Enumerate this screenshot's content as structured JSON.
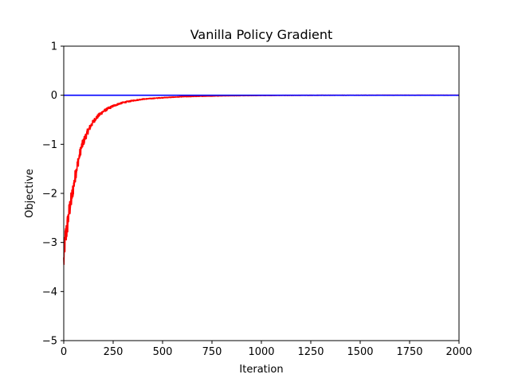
{
  "chart_data": {
    "type": "line",
    "title": "Vanilla Policy Gradient",
    "xlabel": "Iteration",
    "ylabel": "Objective",
    "xlim": [
      0,
      2000
    ],
    "ylim": [
      -5,
      1
    ],
    "xticks": [
      0,
      250,
      500,
      750,
      1000,
      1250,
      1500,
      1750,
      2000
    ],
    "yticks": [
      1,
      0,
      -1,
      -2,
      -3,
      -4,
      -5
    ],
    "grid": false,
    "legend": "none",
    "series": [
      {
        "color": "#ff0000",
        "style": "noisy",
        "x": [
          0,
          5,
          10,
          15,
          20,
          25,
          30,
          40,
          50,
          60,
          70,
          80,
          90,
          100,
          120,
          140,
          160,
          180,
          200,
          225,
          250,
          275,
          300,
          350,
          400,
          450,
          500,
          600,
          700,
          800,
          900,
          1000,
          1100,
          1200,
          1300,
          1400,
          1600,
          1800,
          2000
        ],
        "y": [
          -3.4,
          -3.05,
          -2.85,
          -2.75,
          -2.6,
          -2.45,
          -2.3,
          -2.1,
          -1.85,
          -1.6,
          -1.4,
          -1.22,
          -1.05,
          -0.95,
          -0.75,
          -0.6,
          -0.48,
          -0.4,
          -0.33,
          -0.27,
          -0.22,
          -0.18,
          -0.15,
          -0.11,
          -0.08,
          -0.065,
          -0.05,
          -0.03,
          -0.02,
          -0.012,
          -0.008,
          -0.005,
          -0.003,
          -0.002,
          -0.001,
          -0.001,
          0,
          0,
          0
        ]
      },
      {
        "color": "#0000ff",
        "style": "flat",
        "x": [
          0,
          2000
        ],
        "y": [
          0,
          0
        ]
      }
    ]
  }
}
